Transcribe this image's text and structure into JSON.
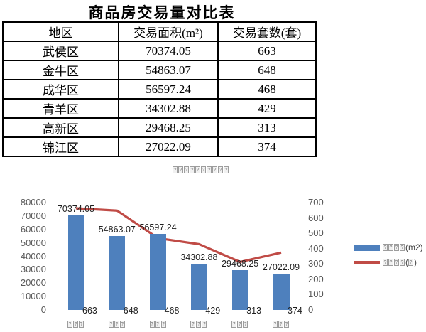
{
  "doc": {
    "title": "商品房交易量对比表"
  },
  "table": {
    "headers": [
      "地区",
      "交易面积(m²)",
      "交易套数(套)"
    ],
    "rows": [
      [
        "武侯区",
        "70374.05",
        "663"
      ],
      [
        "金牛区",
        "54863.07",
        "648"
      ],
      [
        "成华区",
        "56597.24",
        "468"
      ],
      [
        "青羊区",
        "34302.88",
        "429"
      ],
      [
        "高新区",
        "29468.25",
        "313"
      ],
      [
        "锦江区",
        "27022.09",
        "374"
      ]
    ]
  },
  "colors": {
    "bar": "#4E80BD",
    "line": "#C04B46",
    "axis_label": "#595959",
    "data_label": "#1f1f1f"
  },
  "chart_data": {
    "type": "bar",
    "subtype": "combo-bar-line-dual-axis",
    "glyphs_missing": true,
    "title": "□□□□□□□□□□",
    "categories": [
      "□□□",
      "□□□",
      "□□□",
      "□□□",
      "□□□",
      "□□□"
    ],
    "series": [
      {
        "name": "□□□□(m2)",
        "type": "bar",
        "axis": "left",
        "color": "#4E80BD",
        "values": [
          70374.05,
          54863.07,
          56597.24,
          34302.88,
          29468.25,
          27022.09
        ],
        "data_labels": [
          "70374.05",
          "54863.07",
          "56597.24",
          "34302.88",
          "29468.25",
          "27022.09"
        ]
      },
      {
        "name": "□□□□(□)",
        "type": "line",
        "axis": "right",
        "color": "#C04B46",
        "values": [
          663,
          648,
          468,
          429,
          313,
          374
        ],
        "data_labels": [
          "663",
          "648",
          "468",
          "429",
          "313",
          "374"
        ]
      }
    ],
    "left_axis": {
      "min": 0,
      "max": 80000,
      "step": 10000,
      "ticks": [
        "0",
        "10000",
        "20000",
        "30000",
        "40000",
        "50000",
        "60000",
        "70000",
        "80000"
      ]
    },
    "right_axis": {
      "min": 0,
      "max": 700,
      "step": 100,
      "ticks": [
        "0",
        "100",
        "200",
        "300",
        "400",
        "500",
        "600",
        "700"
      ]
    },
    "legend": {
      "position": "right",
      "items": [
        {
          "label": "□□□□(m2)",
          "swatch": "bar"
        },
        {
          "label": "□□□□(□)",
          "swatch": "line"
        }
      ]
    },
    "gridlines": false
  }
}
